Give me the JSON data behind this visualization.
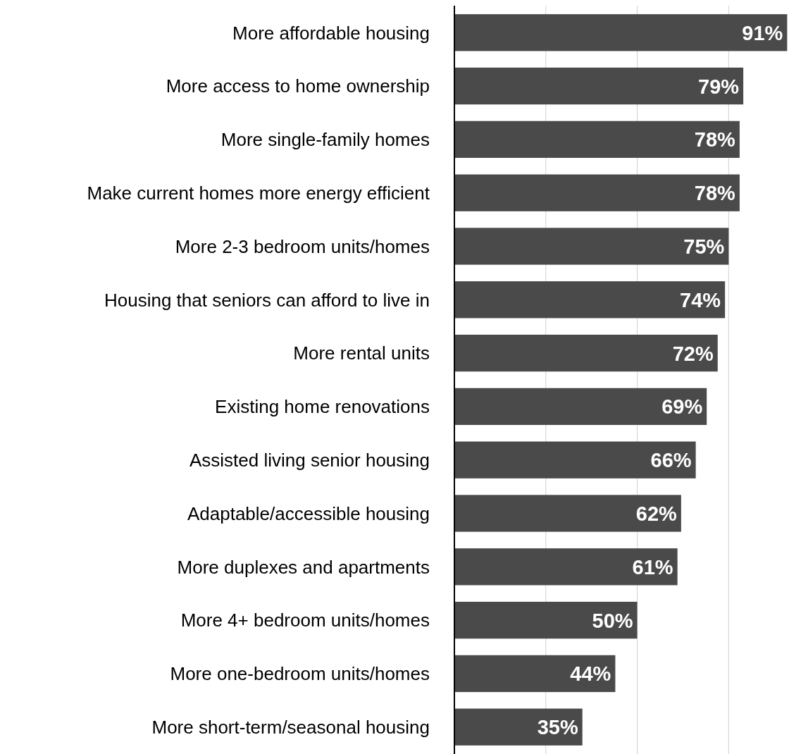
{
  "chart_data": {
    "type": "bar",
    "orientation": "horizontal",
    "categories": [
      "More affordable housing",
      "More access to home ownership",
      "More single-family homes",
      "Make current homes more energy efficient",
      "More 2-3 bedroom units/homes",
      "Housing that seniors can afford to live in",
      "More rental units",
      "Existing home renovations",
      "Assisted living senior housing",
      "Adaptable/accessible housing",
      "More duplexes and apartments",
      "More 4+ bedroom units/homes",
      "More one-bedroom units/homes",
      "More short-term/seasonal housing"
    ],
    "values": [
      91,
      79,
      78,
      78,
      75,
      74,
      72,
      69,
      66,
      62,
      61,
      50,
      44,
      35
    ],
    "value_labels": [
      "91%",
      "79%",
      "78%",
      "78%",
      "75%",
      "74%",
      "72%",
      "69%",
      "66%",
      "62%",
      "61%",
      "50%",
      "44%",
      "35%"
    ],
    "color": "#4a4a4a",
    "xlim": [
      0,
      91.5
    ],
    "xticks": [
      {
        "value": 0,
        "label": null
      },
      {
        "value": 25,
        "label": null
      },
      {
        "value": 50,
        "label": null
      },
      {
        "value": 75,
        "label": null
      }
    ],
    "grid": "x",
    "tick_labels": "y"
  }
}
